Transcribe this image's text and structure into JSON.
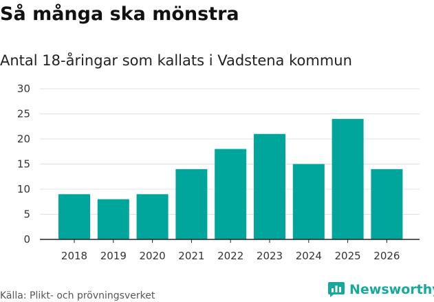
{
  "title": "Så många ska mönstra",
  "subtitle": "Antal 18-åringar som kallats i Vadstena kommun",
  "source": "Källa: Plikt- och prövningsverket",
  "brand": {
    "name": "Newsworthy",
    "logo_icon": "newsworthy-logo-icon",
    "color": "#17a99b"
  },
  "colors": {
    "bar": "#00a59b",
    "grid": "#e0e0e0",
    "axis": "#222222",
    "text": "#333333"
  },
  "chart_data": {
    "type": "bar",
    "title": "Så många ska mönstra",
    "subtitle": "Antal 18-åringar som kallats i Vadstena kommun",
    "xlabel": "",
    "ylabel": "",
    "categories": [
      "2018",
      "2019",
      "2020",
      "2021",
      "2022",
      "2023",
      "2024",
      "2025",
      "2026"
    ],
    "values": [
      9,
      8,
      9,
      14,
      18,
      21,
      15,
      24,
      14
    ],
    "ylim": [
      0,
      30
    ],
    "yticks": [
      0,
      5,
      10,
      15,
      20,
      25,
      30
    ],
    "grid": true,
    "legend": "none"
  }
}
